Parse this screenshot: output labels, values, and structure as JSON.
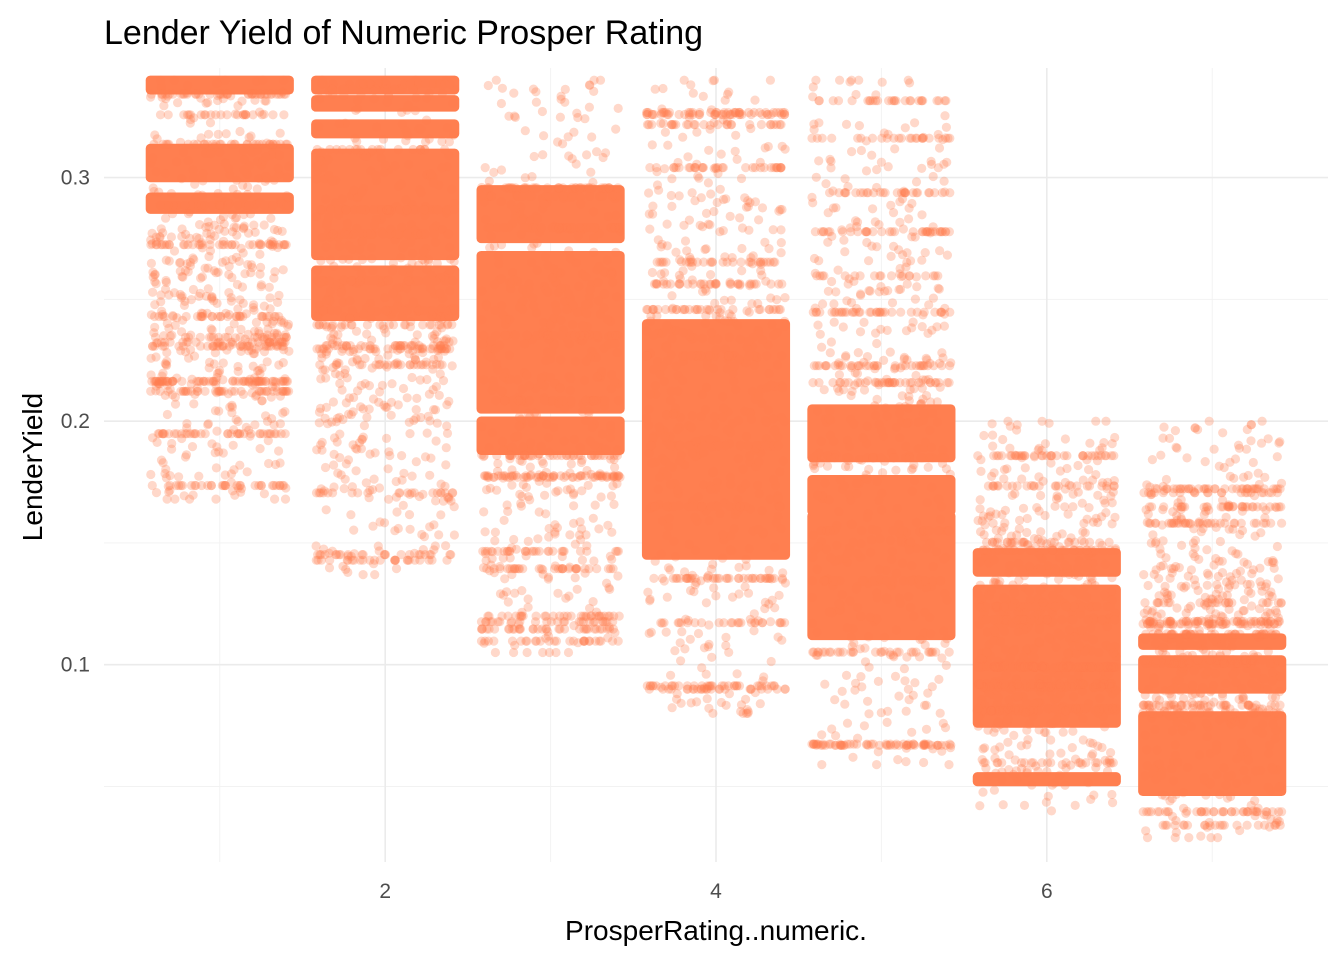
{
  "chart_data": {
    "type": "scatter",
    "title": "Lender Yield of Numeric Prosper Rating",
    "xlabel": "ProsperRating..numeric.",
    "ylabel": "LenderYield",
    "xlim": [
      0.3,
      7.7
    ],
    "ylim": [
      0.019,
      0.345
    ],
    "x_ticks": [
      2,
      4,
      6
    ],
    "x_tick_labels": [
      "2",
      "4",
      "6"
    ],
    "y_ticks": [
      0.1,
      0.2,
      0.3
    ],
    "y_tick_labels": [
      "0.1",
      "0.2",
      "0.3"
    ],
    "x_minor_ticks": [
      1,
      3,
      5,
      7
    ],
    "y_minor_ticks": [
      0.05,
      0.15,
      0.25
    ],
    "grid": true,
    "jitter_width": 0.42,
    "point_color": "#FF7F50",
    "point_alpha": 0.3,
    "series": [
      {
        "rating": 1,
        "y_min": 0.168,
        "y_max": 0.34,
        "dense_bands": [
          [
            0.3,
            0.312
          ],
          [
            0.287,
            0.292
          ],
          [
            0.336,
            0.34
          ]
        ],
        "sparse_range": [
          0.168,
          0.34
        ]
      },
      {
        "rating": 2,
        "y_min": 0.137,
        "y_max": 0.34,
        "dense_bands": [
          [
            0.268,
            0.31
          ],
          [
            0.243,
            0.262
          ],
          [
            0.318,
            0.322
          ],
          [
            0.329,
            0.332
          ],
          [
            0.336,
            0.34
          ]
        ],
        "sparse_range": [
          0.137,
          0.34
        ]
      },
      {
        "rating": 3,
        "y_min": 0.105,
        "y_max": 0.34,
        "dense_bands": [
          [
            0.205,
            0.268
          ],
          [
            0.188,
            0.2
          ],
          [
            0.275,
            0.295
          ]
        ],
        "sparse_range": [
          0.105,
          0.34
        ]
      },
      {
        "rating": 4,
        "y_min": 0.08,
        "y_max": 0.34,
        "dense_bands": [
          [
            0.145,
            0.24
          ]
        ],
        "sparse_range": [
          0.08,
          0.34
        ]
      },
      {
        "rating": 5,
        "y_min": 0.059,
        "y_max": 0.34,
        "dense_bands": [
          [
            0.112,
            0.161
          ],
          [
            0.163,
            0.176
          ],
          [
            0.185,
            0.205
          ]
        ],
        "sparse_range": [
          0.059,
          0.34
        ]
      },
      {
        "rating": 6,
        "y_min": 0.04,
        "y_max": 0.2,
        "dense_bands": [
          [
            0.076,
            0.131
          ],
          [
            0.138,
            0.146
          ],
          [
            0.052,
            0.054
          ]
        ],
        "sparse_range": [
          0.04,
          0.2
        ]
      },
      {
        "rating": 7,
        "y_min": 0.029,
        "y_max": 0.2,
        "dense_bands": [
          [
            0.048,
            0.079
          ],
          [
            0.09,
            0.102
          ],
          [
            0.108,
            0.111
          ]
        ],
        "sparse_range": [
          0.029,
          0.2
        ]
      }
    ]
  }
}
